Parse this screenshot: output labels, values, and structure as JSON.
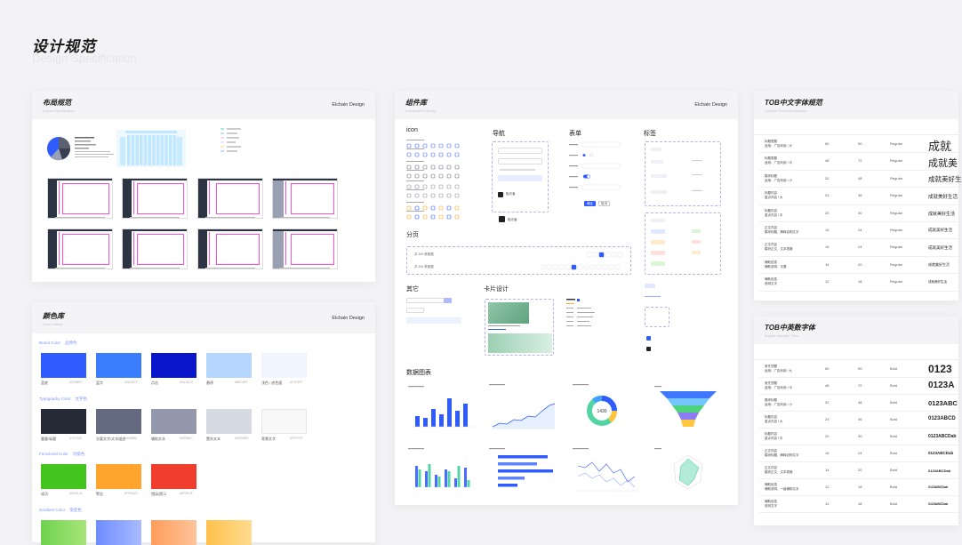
{
  "page": {
    "title": "设计规范",
    "subtitle": "Design Specification"
  },
  "colors": {
    "brand_blue": "#2f5bff",
    "pink_guide": "#ff4fd8",
    "dark_sidebar": "#2c3343",
    "green": "#52c41a",
    "orange": "#ffa42d",
    "red": "#ef3e2e"
  },
  "layout_card": {
    "title": "布局规范",
    "subtitle": "Layout Specification",
    "brand": "Elchain Design"
  },
  "color_card": {
    "title": "颜色库",
    "subtitle": "Color Library",
    "brand": "Elchain Design",
    "groups": [
      {
        "label": "Brand Color",
        "cn": "品牌色",
        "swatches": [
          {
            "name": "蓝底",
            "code": "#2F5BFF",
            "color": "#2f5bff"
          },
          {
            "name": "蓝字",
            "code": "#3A7EFF",
            "color": "#3a7eff"
          },
          {
            "name": "点击",
            "code": "#0A16CC",
            "color": "#0a16cc"
          },
          {
            "name": "悬停",
            "code": "#B5D6FF",
            "color": "#b5d6ff"
          },
          {
            "name": "浅色 / 底色面",
            "code": "#F1F5FF",
            "color": "#f1f5ff"
          }
        ]
      },
      {
        "label": "Typography Color",
        "cn": "文字色",
        "swatches": [
          {
            "name": "重要/标题",
            "code": "#1F2330",
            "color": "#252a36"
          },
          {
            "name": "次要文字/文本描述",
            "code": "#646B80",
            "color": "#646b80"
          },
          {
            "name": "辅助文本",
            "code": "#9398AC",
            "color": "#9398ac"
          },
          {
            "name": "置灰文本",
            "code": "#D0D5DE",
            "color": "#d6dae2"
          },
          {
            "name": "背景文字",
            "code": "#FFFFFF",
            "color": "#f8f8f8"
          }
        ]
      },
      {
        "label": "Functional Color",
        "cn": "功能色",
        "swatches": [
          {
            "name": "成功",
            "code": "#52C41A",
            "color": "#43c51d"
          },
          {
            "name": "警告",
            "code": "#FFA42D",
            "color": "#ffa42d"
          },
          {
            "name": "错误/提示",
            "code": "#EF3E2E",
            "color": "#ef3e2e"
          }
        ]
      },
      {
        "label": "Gradient Color",
        "cn": "渐变色",
        "swatches": []
      }
    ]
  },
  "component_card": {
    "title": "组件库",
    "subtitle": "Component Library",
    "brand": "Elchain Design",
    "sections": {
      "icon": "icon",
      "nav": "导航",
      "form": "表单",
      "tag": "标签",
      "pagination": "分页",
      "other": "其它",
      "card": "卡片设计",
      "charts": "数据图表"
    },
    "nav_user": "极光者",
    "button_primary": "确定",
    "button_cancel": "取消",
    "pagination_total": "共 100 条数据",
    "donut_value": "1430"
  },
  "cn_font_card": {
    "title": "TOB中文字体规范",
    "subtitle": "Chinese Font Specification",
    "rows": [
      {
        "desc": "标题表题",
        "sub": "适用：广告利用 / 大",
        "size": "60",
        "lh": "90",
        "weight": "Regular",
        "sample": "成就",
        "fs": 13
      },
      {
        "desc": "标题表题",
        "sub": "适用：广告利用 / 中",
        "size": "48",
        "lh": "72",
        "weight": "Regular",
        "sample": "成就美",
        "fs": 11
      },
      {
        "desc": "模块标题",
        "sub": "适用：广告利用 / 小",
        "size": "32",
        "lh": "48",
        "weight": "Regular",
        "sample": "成就美好生",
        "fs": 7.5
      },
      {
        "desc": "标题内容",
        "sub": "重点内容 / 大",
        "size": "24",
        "lh": "36",
        "weight": "Regular",
        "sample": "成就美好生活",
        "fs": 5.5
      },
      {
        "desc": "标题内容",
        "sub": "重点内容 / 中",
        "size": "20",
        "lh": "30",
        "weight": "Regular",
        "sample": "成就美好生活",
        "fs": 5
      },
      {
        "desc": "正文内容",
        "sub": "模块标题，解释说明文字",
        "size": "16",
        "lh": "24",
        "weight": "Regular",
        "sample": "成就美好生活",
        "fs": 4.5
      },
      {
        "desc": "正文内容",
        "sub": "模块正文，文本表格",
        "size": "16",
        "lh": "24",
        "weight": "Regular",
        "sample": "成就美好生活",
        "fs": 4.5
      },
      {
        "desc": "辅助信息",
        "sub": "辅助说明，次要",
        "size": "14",
        "lh": "20",
        "weight": "Regular",
        "sample": "成就美好生活",
        "fs": 4
      },
      {
        "desc": "辅助信息",
        "sub": "说明文字",
        "size": "12",
        "lh": "18",
        "weight": "Regular",
        "sample": "成就美好生活",
        "fs": 3.5
      }
    ]
  },
  "num_font_card": {
    "title": "TOB中英数字体",
    "subtitle": "English Number Font",
    "rows": [
      {
        "desc": "常先须题",
        "sub": "适用：广告利用 / 大",
        "size": "60",
        "lh": "90",
        "weight": "Bold",
        "sample": "0123",
        "fs": 12
      },
      {
        "desc": "常先须题",
        "sub": "适用：广告利用 / 中",
        "size": "48",
        "lh": "72",
        "weight": "Bold",
        "sample": "0123A",
        "fs": 10
      },
      {
        "desc": "模块标题",
        "sub": "适用：广告利用 / 小",
        "size": "32",
        "lh": "48",
        "weight": "Bold",
        "sample": "0123ABC",
        "fs": 7.5
      },
      {
        "desc": "标题内容",
        "sub": "重点内容 / 大",
        "size": "24",
        "lh": "36",
        "weight": "Bold",
        "sample": "0123ABCD",
        "fs": 6
      },
      {
        "desc": "标题内容",
        "sub": "重点内容 / 中",
        "size": "20",
        "lh": "30",
        "weight": "Bold",
        "sample": "0123ABCDab",
        "fs": 5
      },
      {
        "desc": "正文内容",
        "sub": "模块标题，解释说明文字",
        "size": "16",
        "lh": "24",
        "weight": "Bold",
        "sample": "0123ABCDab",
        "fs": 4.5
      },
      {
        "desc": "正文内容",
        "sub": "模块正文，文本表格",
        "size": "14",
        "lh": "20",
        "weight": "Bold",
        "sample": "0123ABCDab",
        "fs": 4
      },
      {
        "desc": "辅助信息",
        "sub": "辅助说明，一级辅助文本",
        "size": "12",
        "lh": "18",
        "weight": "Bold",
        "sample": "0123ABCDab",
        "fs": 3.5
      },
      {
        "desc": "辅助信息",
        "sub": "说明文字",
        "size": "12",
        "lh": "18",
        "weight": "Bold",
        "sample": "0123ABCDab",
        "fs": 3.5
      }
    ]
  }
}
